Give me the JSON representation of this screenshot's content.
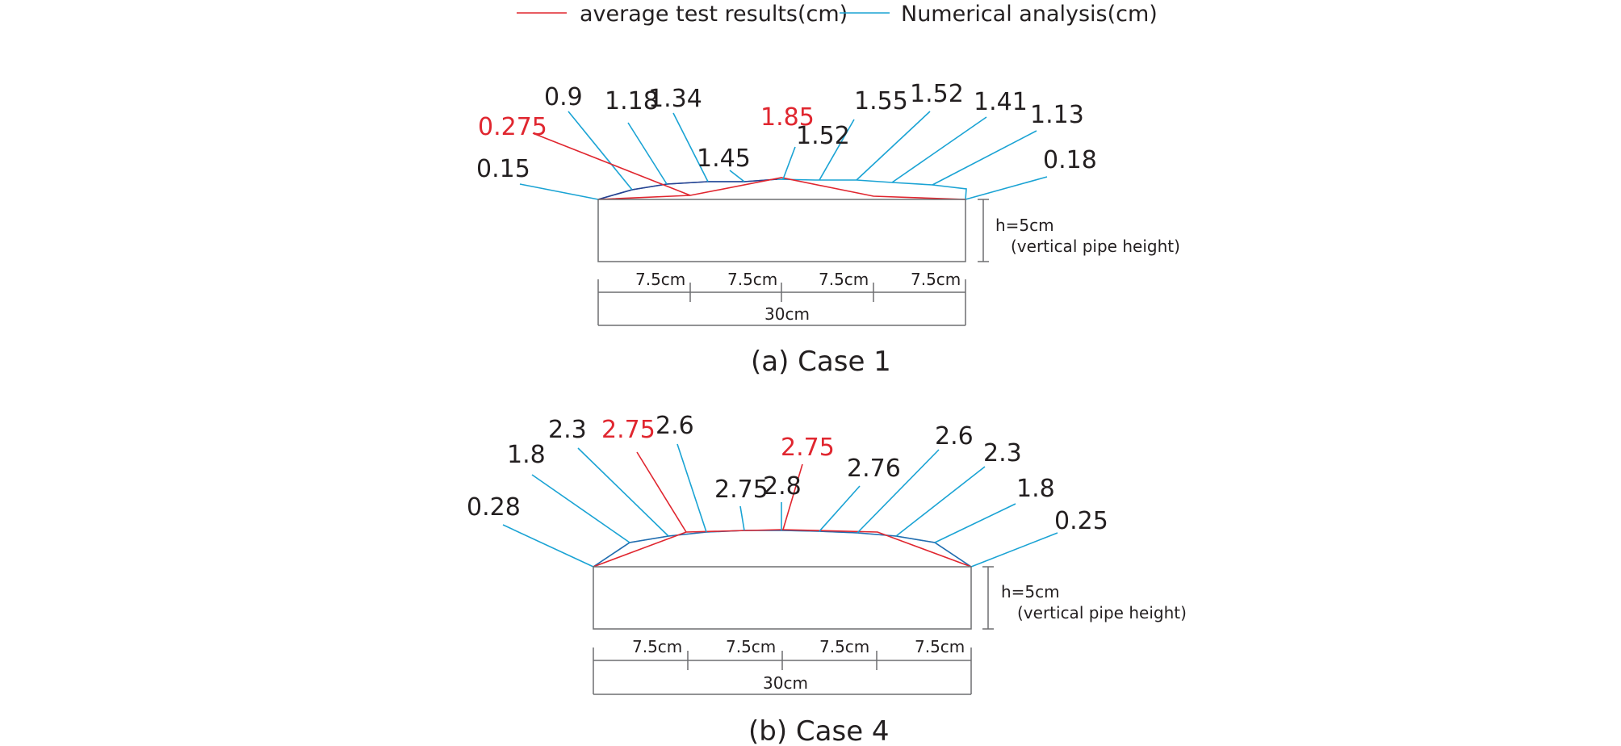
{
  "legend": {
    "test_label": "average test results(cm)",
    "numerical_label": "Numerical analysis(cm)",
    "test_color": "#e0262f",
    "numerical_color": "#1aa3d4"
  },
  "case1": {
    "caption": "(a) Case 1",
    "numerical_values": [
      "0.15",
      "0.9",
      "1.18",
      "1.34",
      "1.45",
      "1.52",
      "1.55",
      "1.52",
      "1.41",
      "1.13",
      "0.18"
    ],
    "test_values": [
      "0.275",
      "1.85"
    ],
    "height_label": "h=5cm",
    "height_note": "(vertical pipe height)",
    "segment_labels": [
      "7.5cm",
      "7.5cm",
      "7.5cm",
      "7.5cm"
    ],
    "total_label": "30cm"
  },
  "case4": {
    "caption": "(b) Case 4",
    "numerical_values": [
      "0.28",
      "1.8",
      "2.3",
      "2.6",
      "2.75",
      "2.8",
      "2.76",
      "2.6",
      "2.3",
      "1.8",
      "0.25"
    ],
    "test_values": [
      "2.75",
      "2.75"
    ],
    "height_label": "h=5cm",
    "height_note": "(vertical pipe height)",
    "segment_labels": [
      "7.5cm",
      "7.5cm",
      "7.5cm",
      "7.5cm"
    ],
    "total_label": "30cm"
  }
}
